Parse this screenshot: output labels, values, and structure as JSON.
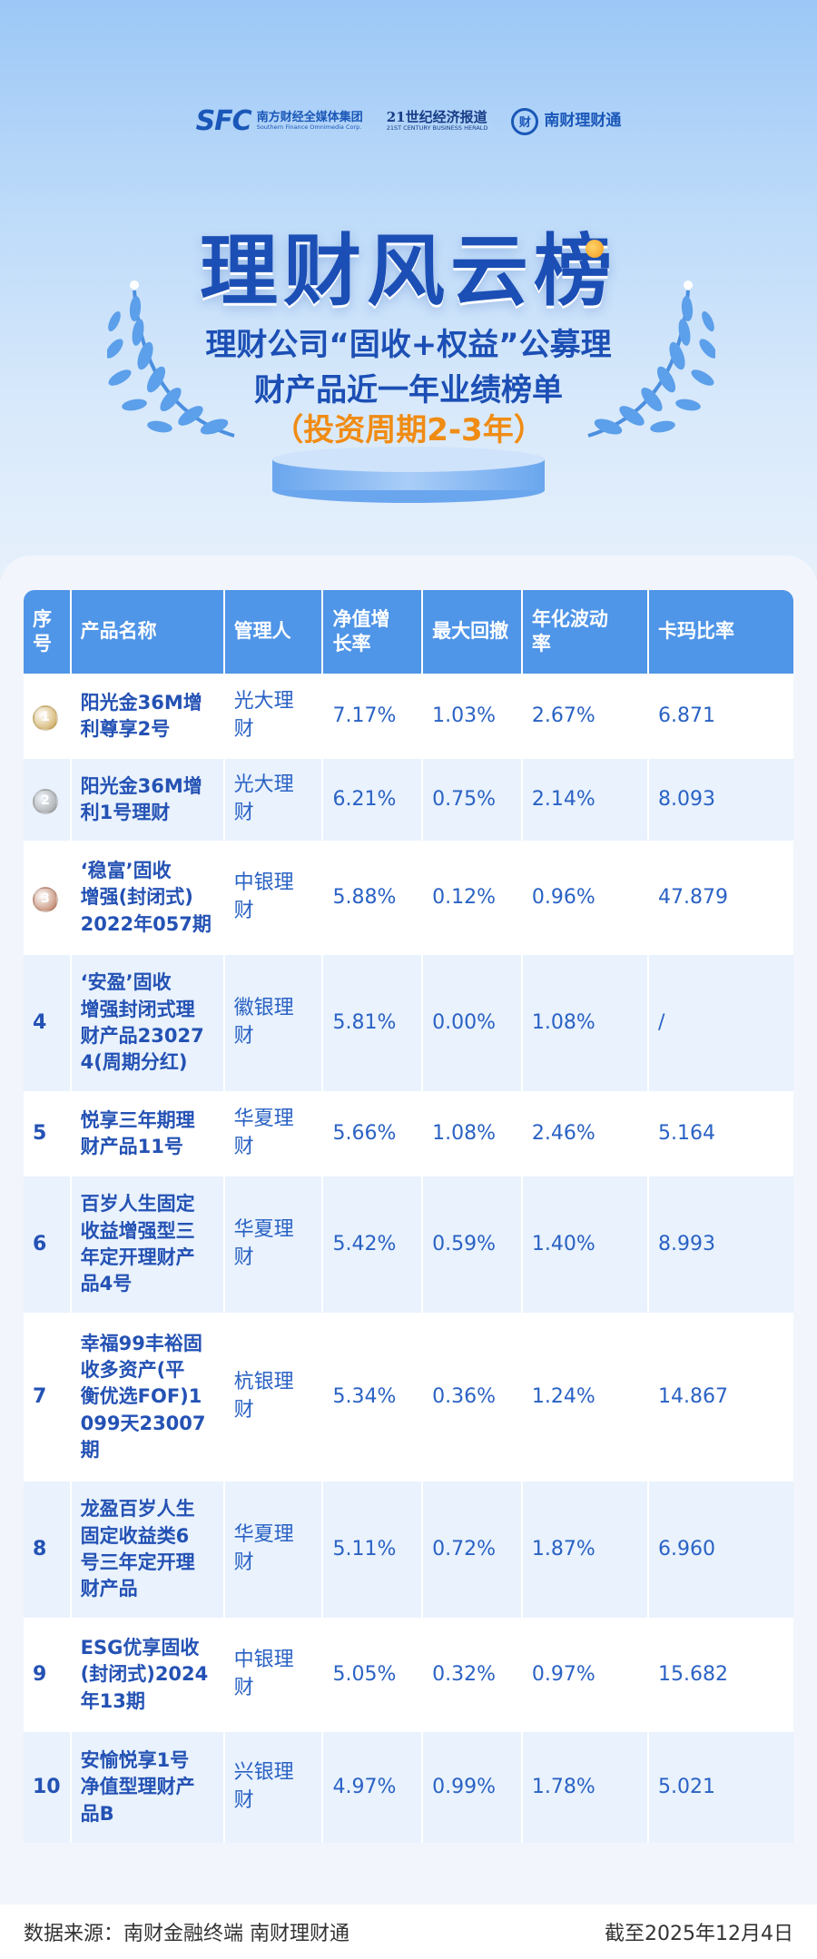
{
  "header": {
    "logos": {
      "sfc_mark": "SFC",
      "sfc_name": "南方财经全媒体集团",
      "sfc_en": "Southern Finance Omnimedia Corp.",
      "herald_name": "21世纪经济报道",
      "herald_en": "21ST CENTURY BUSINESS HERALD",
      "ncl_mark": "财",
      "ncl_name": "南财理财通"
    },
    "title": "理财风云榜",
    "subtitle_line1": "理财公司“固收+权益”公募理",
    "subtitle_line2": "财产品近一年业绩榜单",
    "period": "（投资周期2-3年）"
  },
  "colors": {
    "accent": "#1c4fb5",
    "header_bg": "#4f95e8",
    "period": "#f08c14",
    "gold": "#c9a24a",
    "silver": "#9a9a9a",
    "bronze": "#b87456"
  },
  "table": {
    "headers": [
      "序号",
      "产品名称",
      "管理人",
      "净值增长率",
      "最大回撤",
      "年化波动率",
      "卡玛比率"
    ],
    "header_lines": [
      [
        "序",
        "号"
      ],
      [
        "产品名称"
      ],
      [
        "管理人"
      ],
      [
        "净值增",
        "长率"
      ],
      [
        "最大回撤"
      ],
      [
        "年化波动",
        "率"
      ],
      [
        "卡玛比率"
      ]
    ],
    "rows": [
      {
        "rank": "1",
        "medal": "gold",
        "name": [
          "阳光金36M增",
          "利尊享2号"
        ],
        "manager": "光大理财",
        "growth": "7.17%",
        "drawdown": "1.03%",
        "volatility": "2.67%",
        "calmar": "6.871"
      },
      {
        "rank": "2",
        "medal": "silver",
        "name": [
          "阳光金36M增",
          "利1号理财"
        ],
        "manager": "光大理财",
        "growth": "6.21%",
        "drawdown": "0.75%",
        "volatility": "2.14%",
        "calmar": "8.093"
      },
      {
        "rank": "3",
        "medal": "bronze",
        "name": [
          "‘稳富’固收",
          "增强(封闭式)",
          "2022年057期"
        ],
        "manager": "中银理财",
        "growth": "5.88%",
        "drawdown": "0.12%",
        "volatility": "0.96%",
        "calmar": "47.879"
      },
      {
        "rank": "4",
        "medal": "",
        "name": [
          "‘安盈’固收",
          "增强封闭式理",
          "财产品23027",
          "4(周期分红)"
        ],
        "manager": "徽银理财",
        "growth": "5.81%",
        "drawdown": "0.00%",
        "volatility": "1.08%",
        "calmar": "/"
      },
      {
        "rank": "5",
        "medal": "",
        "name": [
          "悦享三年期理",
          "财产品11号"
        ],
        "manager": "华夏理财",
        "growth": "5.66%",
        "drawdown": "1.08%",
        "volatility": "2.46%",
        "calmar": "5.164"
      },
      {
        "rank": "6",
        "medal": "",
        "name": [
          "百岁人生固定",
          "收益增强型三",
          "年定开理财产",
          "品4号"
        ],
        "manager": "华夏理财",
        "growth": "5.42%",
        "drawdown": "0.59%",
        "volatility": "1.40%",
        "calmar": "8.993"
      },
      {
        "rank": "7",
        "medal": "",
        "name": [
          "幸福99丰裕固",
          "收多资产(平",
          "衡优选FOF)1",
          "099天23007",
          "期"
        ],
        "manager": "杭银理财",
        "growth": "5.34%",
        "drawdown": "0.36%",
        "volatility": "1.24%",
        "calmar": "14.867"
      },
      {
        "rank": "8",
        "medal": "",
        "name": [
          "龙盈百岁人生",
          "固定收益类6",
          "号三年定开理",
          "财产品"
        ],
        "manager": "华夏理财",
        "growth": "5.11%",
        "drawdown": "0.72%",
        "volatility": "1.87%",
        "calmar": "6.960"
      },
      {
        "rank": "9",
        "medal": "",
        "name": [
          "ESG优享固收",
          "(封闭式)2024",
          "年13期"
        ],
        "manager": "中银理财",
        "growth": "5.05%",
        "drawdown": "0.32%",
        "volatility": "0.97%",
        "calmar": "15.682"
      },
      {
        "rank": "10",
        "medal": "",
        "name": [
          "安愉悦享1号",
          "净值型理财产",
          "品B"
        ],
        "manager": "兴银理财",
        "growth": "4.97%",
        "drawdown": "0.99%",
        "volatility": "1.78%",
        "calmar": "5.021"
      }
    ]
  },
  "footer": {
    "source": "数据来源：南财金融终端 南财理财通",
    "date": "截至2025年12月4日"
  }
}
